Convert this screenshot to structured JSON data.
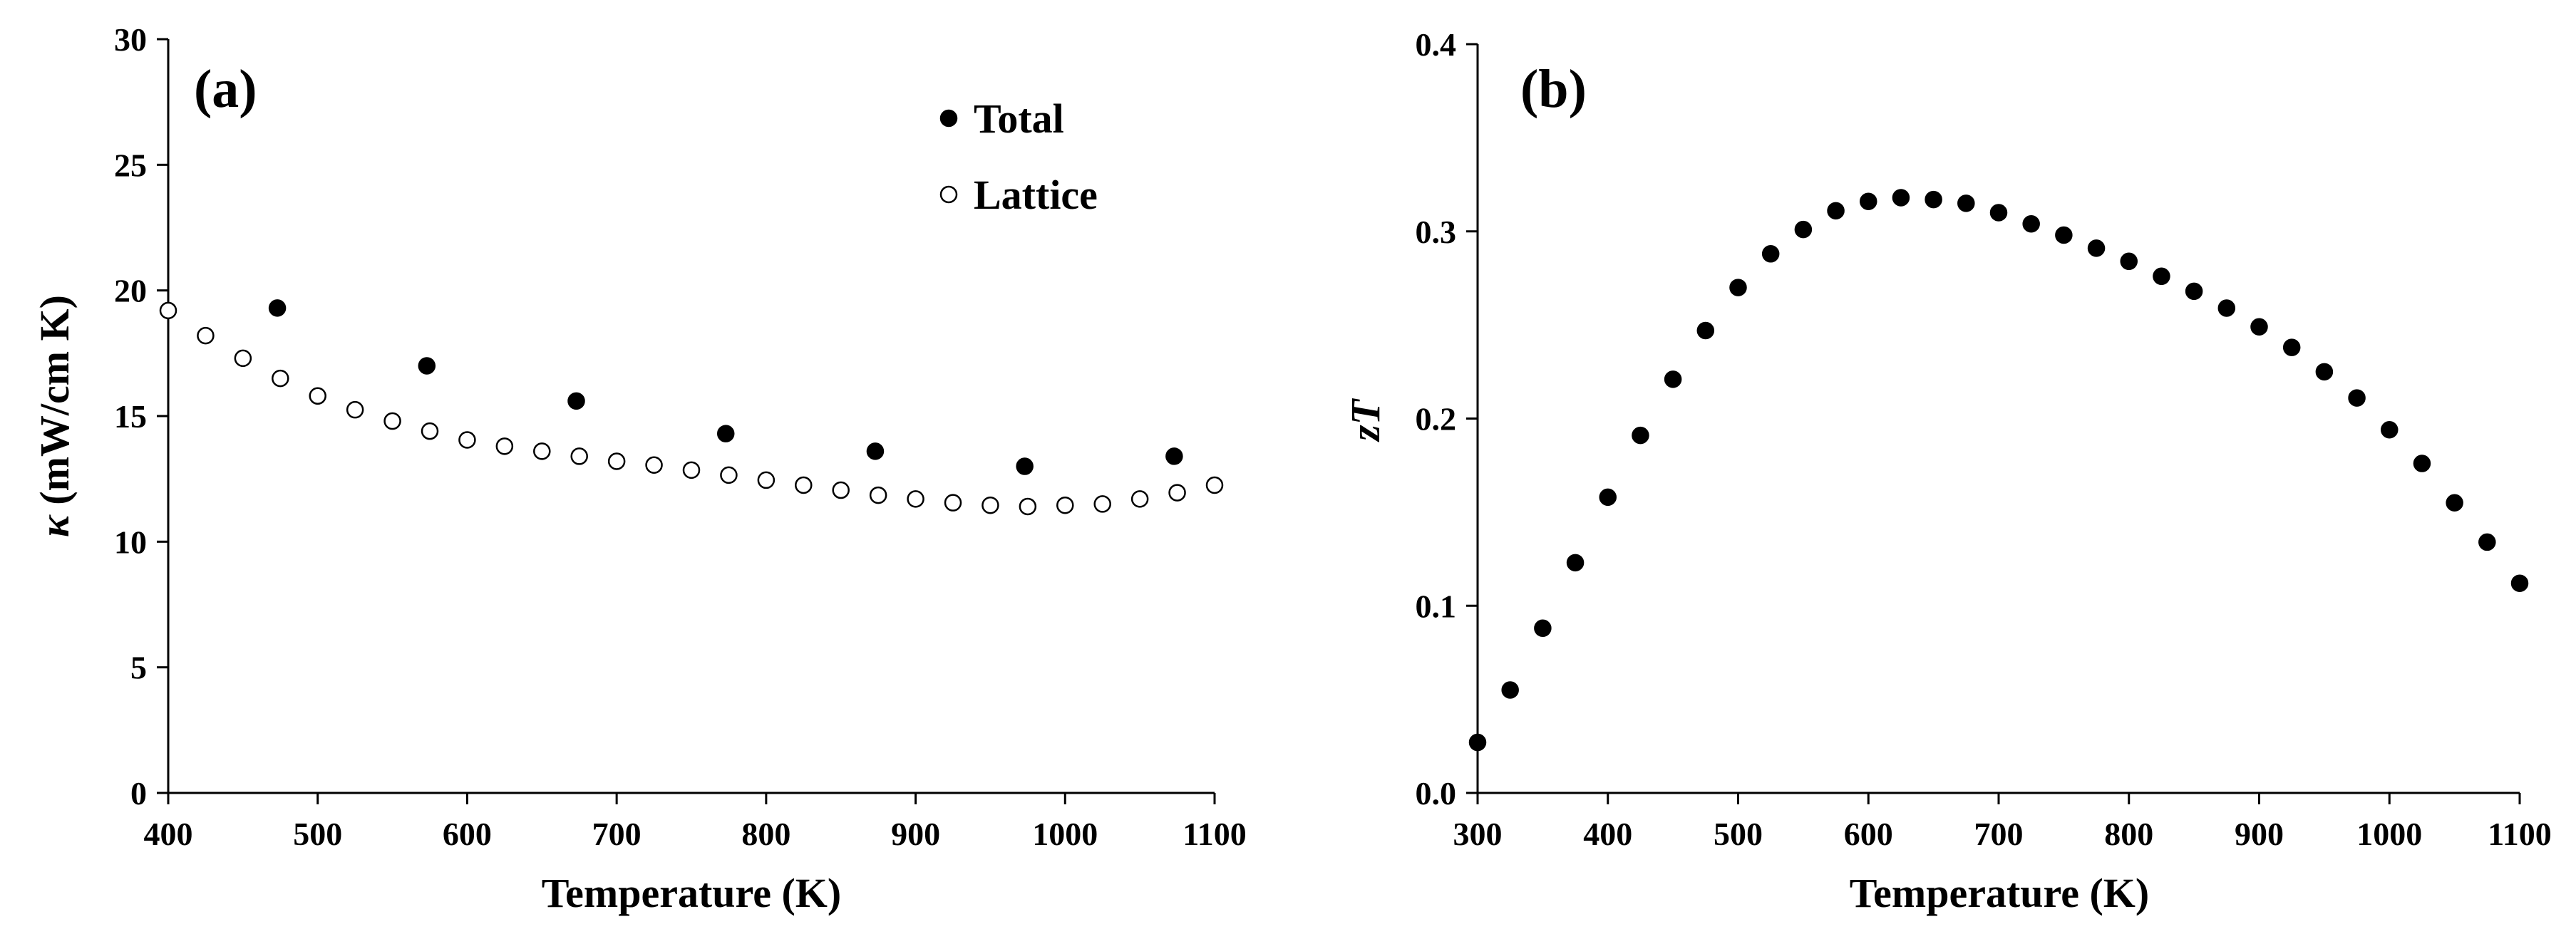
{
  "chart_data": [
    {
      "type": "scatter",
      "panel_label": "(a)",
      "xlabel": "Temperature (K)",
      "ylabel_symbol": "κ",
      "ylabel_text": " (mW/cm K)",
      "xlim": [
        400,
        1100
      ],
      "ylim": [
        0,
        30
      ],
      "xticks": [
        400,
        500,
        600,
        700,
        800,
        900,
        1000,
        1100
      ],
      "yticks": [
        0,
        5,
        10,
        15,
        20,
        25,
        30
      ],
      "grid": false,
      "legend_position": "top-right",
      "series": [
        {
          "name": "Total",
          "marker": "filled-circle",
          "x": [
            473,
            573,
            673,
            773,
            873,
            973,
            1073
          ],
          "y": [
            19.3,
            17.0,
            15.6,
            14.3,
            13.6,
            13.0,
            13.4
          ]
        },
        {
          "name": "Lattice",
          "marker": "open-circle",
          "x": [
            400,
            425,
            450,
            475,
            500,
            525,
            550,
            575,
            600,
            625,
            650,
            675,
            700,
            725,
            750,
            775,
            800,
            825,
            850,
            875,
            900,
            925,
            950,
            975,
            1000,
            1025,
            1050,
            1075,
            1100
          ],
          "y": [
            19.2,
            18.2,
            17.3,
            16.5,
            15.8,
            15.25,
            14.8,
            14.4,
            14.05,
            13.8,
            13.6,
            13.4,
            13.2,
            13.05,
            12.85,
            12.65,
            12.45,
            12.25,
            12.05,
            11.85,
            11.7,
            11.55,
            11.45,
            11.4,
            11.45,
            11.5,
            11.7,
            11.95,
            12.25
          ]
        }
      ]
    },
    {
      "type": "scatter",
      "panel_label": "(b)",
      "xlabel": "Temperature (K)",
      "ylabel": "zT",
      "xlim": [
        300,
        1100
      ],
      "ylim": [
        0,
        0.4
      ],
      "xticks": [
        300,
        400,
        500,
        600,
        700,
        800,
        900,
        1000,
        1100
      ],
      "yticks": [
        0,
        0.1,
        0.2,
        0.3,
        0.4
      ],
      "ytick_labels": [
        "0.0",
        "0.1",
        "0.2",
        "0.3",
        "0.4"
      ],
      "grid": false,
      "series": [
        {
          "name": "zT",
          "marker": "filled-circle",
          "x": [
            300,
            325,
            350,
            375,
            400,
            425,
            450,
            475,
            500,
            525,
            550,
            575,
            600,
            625,
            650,
            675,
            700,
            725,
            750,
            775,
            800,
            825,
            850,
            875,
            900,
            925,
            950,
            975,
            1000,
            1025,
            1050,
            1075,
            1100
          ],
          "y": [
            0.027,
            0.055,
            0.088,
            0.123,
            0.158,
            0.191,
            0.221,
            0.247,
            0.27,
            0.288,
            0.301,
            0.311,
            0.316,
            0.318,
            0.317,
            0.315,
            0.31,
            0.304,
            0.298,
            0.291,
            0.284,
            0.276,
            0.268,
            0.259,
            0.249,
            0.238,
            0.225,
            0.211,
            0.194,
            0.176,
            0.155,
            0.134,
            0.112
          ]
        }
      ]
    }
  ]
}
